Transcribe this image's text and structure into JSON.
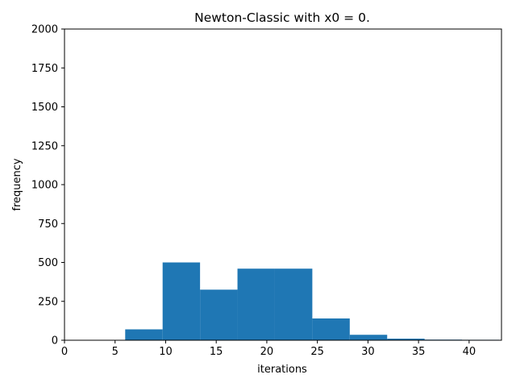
{
  "chart_data": {
    "type": "bar",
    "title": "Newton-Classic with x0 = 0.",
    "xlabel": "iterations",
    "ylabel": "frequency",
    "xlim": [
      0,
      43.2
    ],
    "ylim": [
      0,
      2000
    ],
    "xticks": [
      0,
      5,
      10,
      15,
      20,
      25,
      30,
      35,
      40
    ],
    "yticks": [
      0,
      250,
      500,
      750,
      1000,
      1250,
      1500,
      1750,
      2000
    ],
    "bar_color": "#1f77b4",
    "grid": false,
    "bins": [
      {
        "x0": 6.0,
        "x1": 9.7,
        "value": 70
      },
      {
        "x0": 9.7,
        "x1": 13.4,
        "value": 500
      },
      {
        "x0": 13.4,
        "x1": 17.1,
        "value": 325
      },
      {
        "x0": 17.1,
        "x1": 20.8,
        "value": 460
      },
      {
        "x0": 20.8,
        "x1": 24.5,
        "value": 460
      },
      {
        "x0": 24.5,
        "x1": 28.2,
        "value": 140
      },
      {
        "x0": 28.2,
        "x1": 31.9,
        "value": 35
      },
      {
        "x0": 31.9,
        "x1": 35.6,
        "value": 10
      },
      {
        "x0": 35.6,
        "x1": 39.3,
        "value": 4
      },
      {
        "x0": 39.3,
        "x1": 43.0,
        "value": 3
      }
    ]
  }
}
